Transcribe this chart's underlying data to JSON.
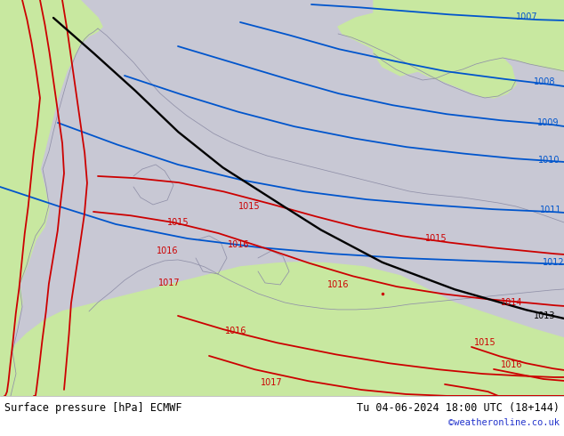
{
  "title_left": "Surface pressure [hPa] ECMWF",
  "title_right": "Tu 04-06-2024 18:00 UTC (18+144)",
  "credit": "©weatheronline.co.uk",
  "sea_color": "#c8c8d4",
  "land_color": "#c8e8a0",
  "coast_color": "#9090a8",
  "footer_bg": "#ffffff",
  "blue_color": "#0055cc",
  "black_color": "#000000",
  "red_color": "#cc0000",
  "fig_width": 6.34,
  "fig_height": 4.9,
  "dpi": 100,
  "label_fontsize": 7.0,
  "footer_fontsize": 8.5,
  "credit_color": "#2233cc",
  "isobar_lw": 1.3,
  "black_lw": 1.7,
  "coast_lw": 0.55
}
